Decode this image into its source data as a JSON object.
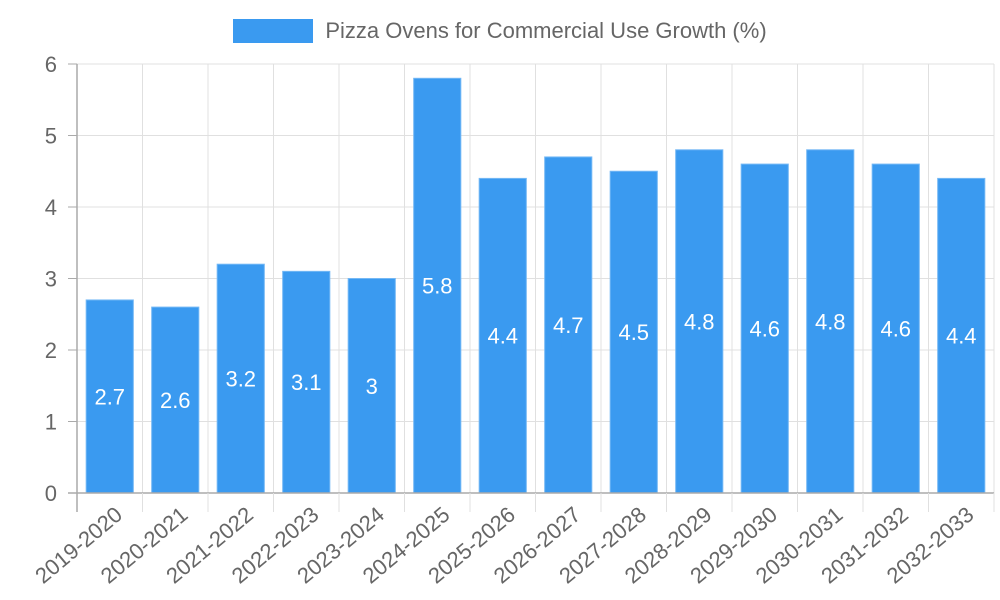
{
  "colors": {
    "bar_fill": "#3a9af0",
    "bar_border": "#74b8f5",
    "grid": "#e0e0e0",
    "axis": "#aaaaaa",
    "tick_text": "#666666",
    "value_label": "#ffffff"
  },
  "chart_data": {
    "type": "bar",
    "title": "",
    "xlabel": "",
    "ylabel": "",
    "legend": {
      "position": "top",
      "entries": [
        "Pizza Ovens for Commercial Use Growth (%)"
      ]
    },
    "grid": true,
    "ylim": [
      0,
      6
    ],
    "yticks": [
      "0",
      "1",
      "2",
      "3",
      "4",
      "5",
      "6"
    ],
    "categories": [
      "2019-2020",
      "2020-2021",
      "2021-2022",
      "2022-2023",
      "2023-2024",
      "2024-2025",
      "2025-2026",
      "2026-2027",
      "2027-2028",
      "2028-2029",
      "2029-2030",
      "2030-2031",
      "2031-2032",
      "2032-2033"
    ],
    "series": [
      {
        "name": "Pizza Ovens for Commercial Use Growth (%)",
        "values": [
          2.7,
          2.6,
          3.2,
          3.1,
          3,
          5.8,
          4.4,
          4.7,
          4.5,
          4.8,
          4.6,
          4.8,
          4.6,
          4.4
        ],
        "data_labels": [
          "2.7",
          "2.6",
          "3.2",
          "3.1",
          "3",
          "5.8",
          "4.4",
          "4.7",
          "4.5",
          "4.8",
          "4.6",
          "4.8",
          "4.6",
          "4.4"
        ]
      }
    ]
  }
}
